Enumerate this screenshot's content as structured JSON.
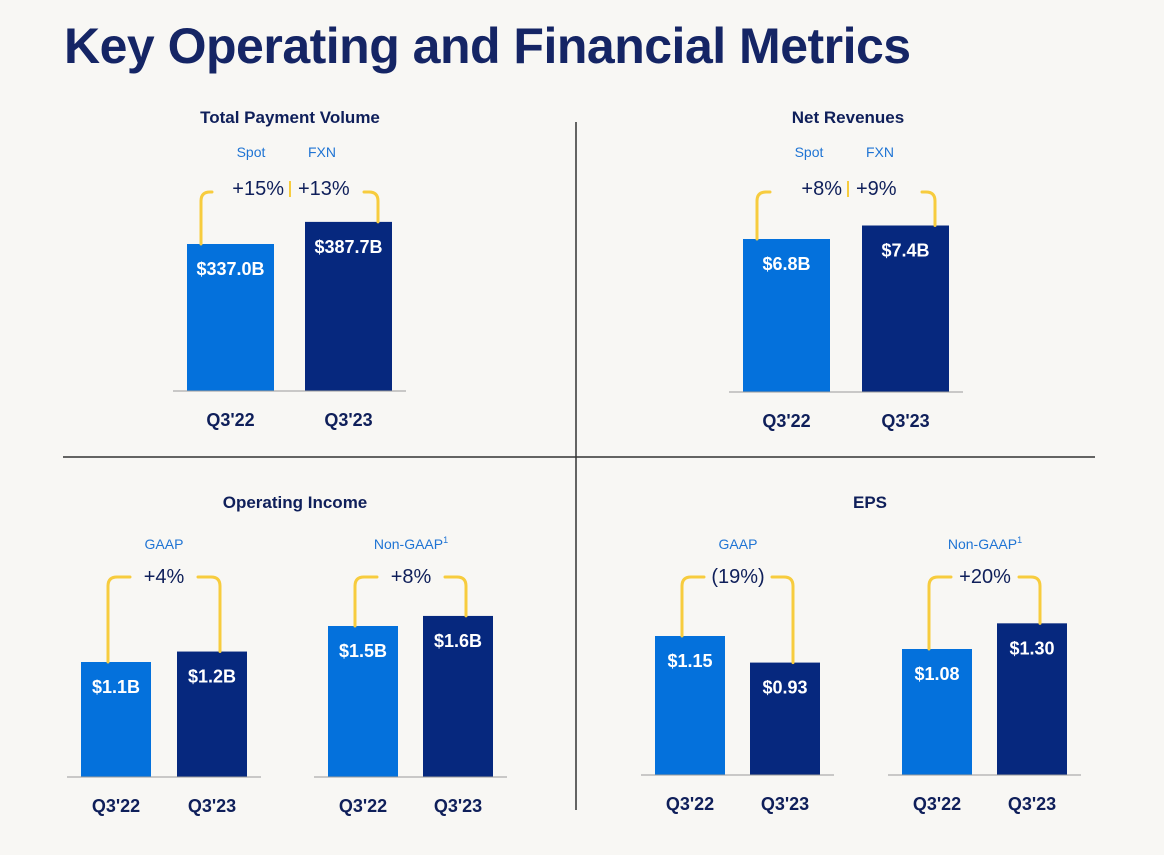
{
  "title": "Key Operating and Financial Metrics",
  "colors": {
    "prior": "#0471dc",
    "current": "#06287e",
    "bracket": "#f7cc3e",
    "title": "#152565"
  },
  "chart_data": [
    {
      "type": "bar",
      "title": "Total Payment Volume",
      "categories": [
        "Q3'22",
        "Q3'23"
      ],
      "values": [
        337.0,
        387.7
      ],
      "value_labels": [
        "$337.0B",
        "$387.7B"
      ],
      "unit": "$B",
      "growth": {
        "labels": [
          "Spot",
          "FXN"
        ],
        "values": [
          "+15%",
          "+13%"
        ]
      }
    },
    {
      "type": "bar",
      "title": "Net Revenues",
      "categories": [
        "Q3'22",
        "Q3'23"
      ],
      "values": [
        6.8,
        7.4
      ],
      "value_labels": [
        "$6.8B",
        "$7.4B"
      ],
      "unit": "$B",
      "growth": {
        "labels": [
          "Spot",
          "FXN"
        ],
        "values": [
          "+8%",
          "+9%"
        ]
      }
    },
    {
      "type": "bar",
      "title": "Operating Income",
      "groups": [
        {
          "label": "GAAP",
          "categories": [
            "Q3'22",
            "Q3'23"
          ],
          "values": [
            1.1,
            1.2
          ],
          "value_labels": [
            "$1.1B",
            "$1.2B"
          ],
          "change": "+4%"
        },
        {
          "label": "Non-GAAP",
          "footnote": "1",
          "categories": [
            "Q3'22",
            "Q3'23"
          ],
          "values": [
            1.5,
            1.6
          ],
          "value_labels": [
            "$1.5B",
            "$1.6B"
          ],
          "change": "+8%"
        }
      ]
    },
    {
      "type": "bar",
      "title": "EPS",
      "groups": [
        {
          "label": "GAAP",
          "categories": [
            "Q3'22",
            "Q3'23"
          ],
          "values": [
            1.15,
            0.93
          ],
          "value_labels": [
            "$1.15",
            "$0.93"
          ],
          "change": "(19%)"
        },
        {
          "label": "Non-GAAP",
          "footnote": "1",
          "categories": [
            "Q3'22",
            "Q3'23"
          ],
          "values": [
            1.08,
            1.3
          ],
          "value_labels": [
            "$1.08",
            "$1.30"
          ],
          "change": "+20%"
        }
      ]
    }
  ]
}
